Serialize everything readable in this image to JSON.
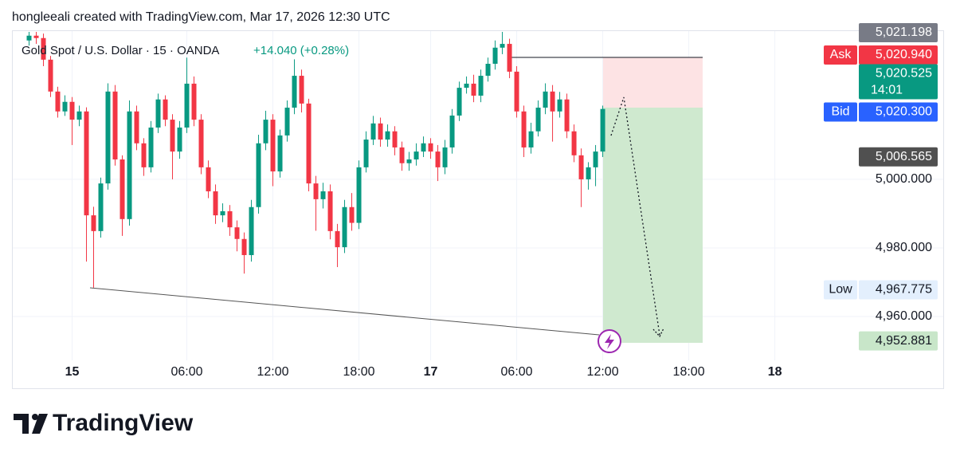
{
  "header": {
    "attribution": "hongleeali created with TradingView.com, Mar 17, 2026 12:30 UTC"
  },
  "footer": {
    "brand": "TradingView"
  },
  "chart_data": {
    "type": "candlestick",
    "title": "Gold Spot / U.S. Dollar · 15 · OANDA",
    "change": "+14.040 (+0.28%)",
    "up_color": "#089981",
    "down_color": "#f23645",
    "grid": true,
    "xlim": [
      -0.5,
      110.6
    ],
    "xticks": [
      {
        "value": 6,
        "label": "15"
      },
      {
        "value": 22,
        "label": "06:00"
      },
      {
        "value": 34,
        "label": "12:00"
      },
      {
        "value": 46,
        "label": "18:00"
      },
      {
        "value": 56,
        "label": "17"
      },
      {
        "value": 68,
        "label": "06:00"
      },
      {
        "value": 80,
        "label": "12:00"
      },
      {
        "value": 92,
        "label": "18:00"
      },
      {
        "value": 104,
        "label": "18"
      }
    ],
    "ylim": [
      4947.2,
      5043
    ],
    "yticks": [
      {
        "value": 4960,
        "label": "4,960.000"
      },
      {
        "value": 4980,
        "label": "4,980.000"
      },
      {
        "value": 5000,
        "label": "5,000.000"
      }
    ],
    "open": [
      5040.5,
      5041.9,
      5041.2,
      5034.9,
      5025.6,
      5019.8,
      5022.6,
      5017.4,
      5019.8,
      4989.5,
      4984.9,
      4998.8,
      5025.6,
      5005.8,
      4988.4,
      5019.8,
      5010.5,
      5003.5,
      5015.1,
      5023.3,
      5017.4,
      5008.1,
      5015.1,
      5027.9,
      5017.4,
      5003.5,
      4996.5,
      4989.5,
      4990.7,
      4986.0,
      4982.6,
      4977.9,
      4991.9,
      5010.5,
      5017.4,
      5002.3,
      5012.8,
      5020.9,
      5030.2,
      5022.1,
      4998.8,
      4994.2,
      4996.5,
      4984.9,
      4980.2,
      4991.9,
      4987.3,
      5003.5,
      5011.6,
      5016.3,
      5011.6,
      5014.0,
      5009.3,
      5004.7,
      5005.8,
      5008.1,
      5010.5,
      5008.1,
      5003.5,
      5009.3,
      5018.6,
      5026.7,
      5027.9,
      5024.4,
      5030.2,
      5033.7,
      5038.4,
      5039.5,
      5031.4,
      5019.8,
      5009.3,
      5014.0,
      5020.9,
      5025.6,
      5019.8,
      5023.3,
      5014.0,
      5007.0,
      5000.0,
      5003.5,
      5008.1
    ],
    "high": [
      5043.0,
      5043.0,
      5042.5,
      5036.0,
      5027.0,
      5024.5,
      5024.0,
      5021.5,
      5021.0,
      4992.0,
      5000.5,
      5028.0,
      5027.5,
      5007.0,
      5023.0,
      5021.5,
      5012.0,
      5017.0,
      5025.0,
      5024.5,
      5019.0,
      5017.0,
      5035.5,
      5030.0,
      5019.0,
      5005.5,
      4998.5,
      4993.0,
      4992.5,
      4988.0,
      4984.5,
      4994.0,
      5013.0,
      5020.0,
      5019.0,
      5014.5,
      5023.0,
      5035.0,
      5032.0,
      5023.5,
      5001.0,
      4999.0,
      4998.5,
      4987.0,
      4994.0,
      4996.0,
      5005.5,
      5014.0,
      5018.5,
      5018.0,
      5016.0,
      5015.5,
      5011.0,
      5008.0,
      5010.5,
      5012.5,
      5012.0,
      5010.0,
      5011.5,
      5020.5,
      5028.5,
      5030.0,
      5030.5,
      5032.0,
      5035.5,
      5040.5,
      5043.0,
      5041.0,
      5033.0,
      5021.5,
      5016.5,
      5023.0,
      5028.0,
      5027.5,
      5025.5,
      5025.0,
      5016.0,
      5009.0,
      5005.0,
      5010.0,
      5021.5
    ],
    "low": [
      5039.0,
      5039.5,
      5033.0,
      5024.0,
      5018.0,
      5018.5,
      5010.0,
      5015.5,
      4976.0,
      4968.4,
      4983.0,
      4997.0,
      5004.0,
      4983.5,
      4986.5,
      5008.5,
      5001.0,
      5002.0,
      5013.5,
      5015.5,
      5000.0,
      5006.0,
      5013.5,
      5015.5,
      5001.5,
      4994.5,
      4987.0,
      4987.5,
      4983.5,
      4979.0,
      4972.5,
      4976.0,
      4990.0,
      5008.5,
      4998.0,
      5000.5,
      5011.0,
      5019.0,
      5019.5,
      4996.5,
      4985.0,
      4991.5,
      4982.5,
      4974.4,
      4978.5,
      4985.0,
      4985.5,
      5002.0,
      5010.0,
      5009.5,
      5009.5,
      5007.0,
      5002.5,
      5002.5,
      5004.0,
      5006.5,
      5006.0,
      4999.5,
      5001.5,
      5007.5,
      5017.0,
      5025.0,
      5022.5,
      5022.5,
      5028.5,
      5032.0,
      5036.5,
      5029.5,
      5018.0,
      5006.5,
      5007.5,
      5012.5,
      5019.0,
      5011.0,
      5018.0,
      5012.0,
      5005.0,
      4991.9,
      4997.0,
      4998.0,
      5006.5
    ],
    "close": [
      5041.9,
      5041.2,
      5034.9,
      5025.6,
      5019.8,
      5022.6,
      5017.4,
      5019.8,
      4989.5,
      4984.9,
      4998.8,
      5025.6,
      5005.8,
      4988.4,
      5019.8,
      5010.5,
      5003.5,
      5015.1,
      5023.3,
      5017.4,
      5008.1,
      5015.1,
      5027.9,
      5017.4,
      5003.5,
      4996.5,
      4989.5,
      4990.7,
      4986.0,
      4982.6,
      4977.9,
      4991.9,
      5010.5,
      5017.4,
      5002.3,
      5012.8,
      5020.9,
      5030.2,
      5022.1,
      4998.8,
      4994.2,
      4996.5,
      4984.9,
      4980.2,
      4991.9,
      4987.3,
      5003.5,
      5011.6,
      5016.3,
      5011.6,
      5014.0,
      5009.3,
      5004.7,
      5005.8,
      5008.1,
      5010.5,
      5008.1,
      5003.5,
      5009.3,
      5018.6,
      5026.7,
      5027.9,
      5024.4,
      5030.2,
      5033.7,
      5038.4,
      5039.5,
      5031.4,
      5019.8,
      5009.3,
      5014.0,
      5020.9,
      5025.6,
      5019.8,
      5023.3,
      5014.0,
      5007.0,
      5000.0,
      5003.5,
      5008.1,
      5020.525
    ],
    "price_labels": [
      {
        "value": 5021.198,
        "label": "5,021.198",
        "color": "#787b86"
      },
      {
        "name": "Ask",
        "value": 5020.94,
        "label": "5,020.940",
        "color": "#f23645"
      },
      {
        "value": 5020.525,
        "label": "5,020.525",
        "sub": "14:01",
        "color": "#089981"
      },
      {
        "name": "Bid",
        "value": 5020.3,
        "label": "5,020.300",
        "color": "#2962ff"
      },
      {
        "value": 5006.565,
        "label": "5,006.565",
        "color": "#505050"
      },
      {
        "name": "Low",
        "value": 4967.775,
        "label": "4,967.775",
        "color": "#e3effd"
      },
      {
        "value": 4952.881,
        "label": "4,952.881",
        "color": "#c8e6c9"
      }
    ]
  }
}
